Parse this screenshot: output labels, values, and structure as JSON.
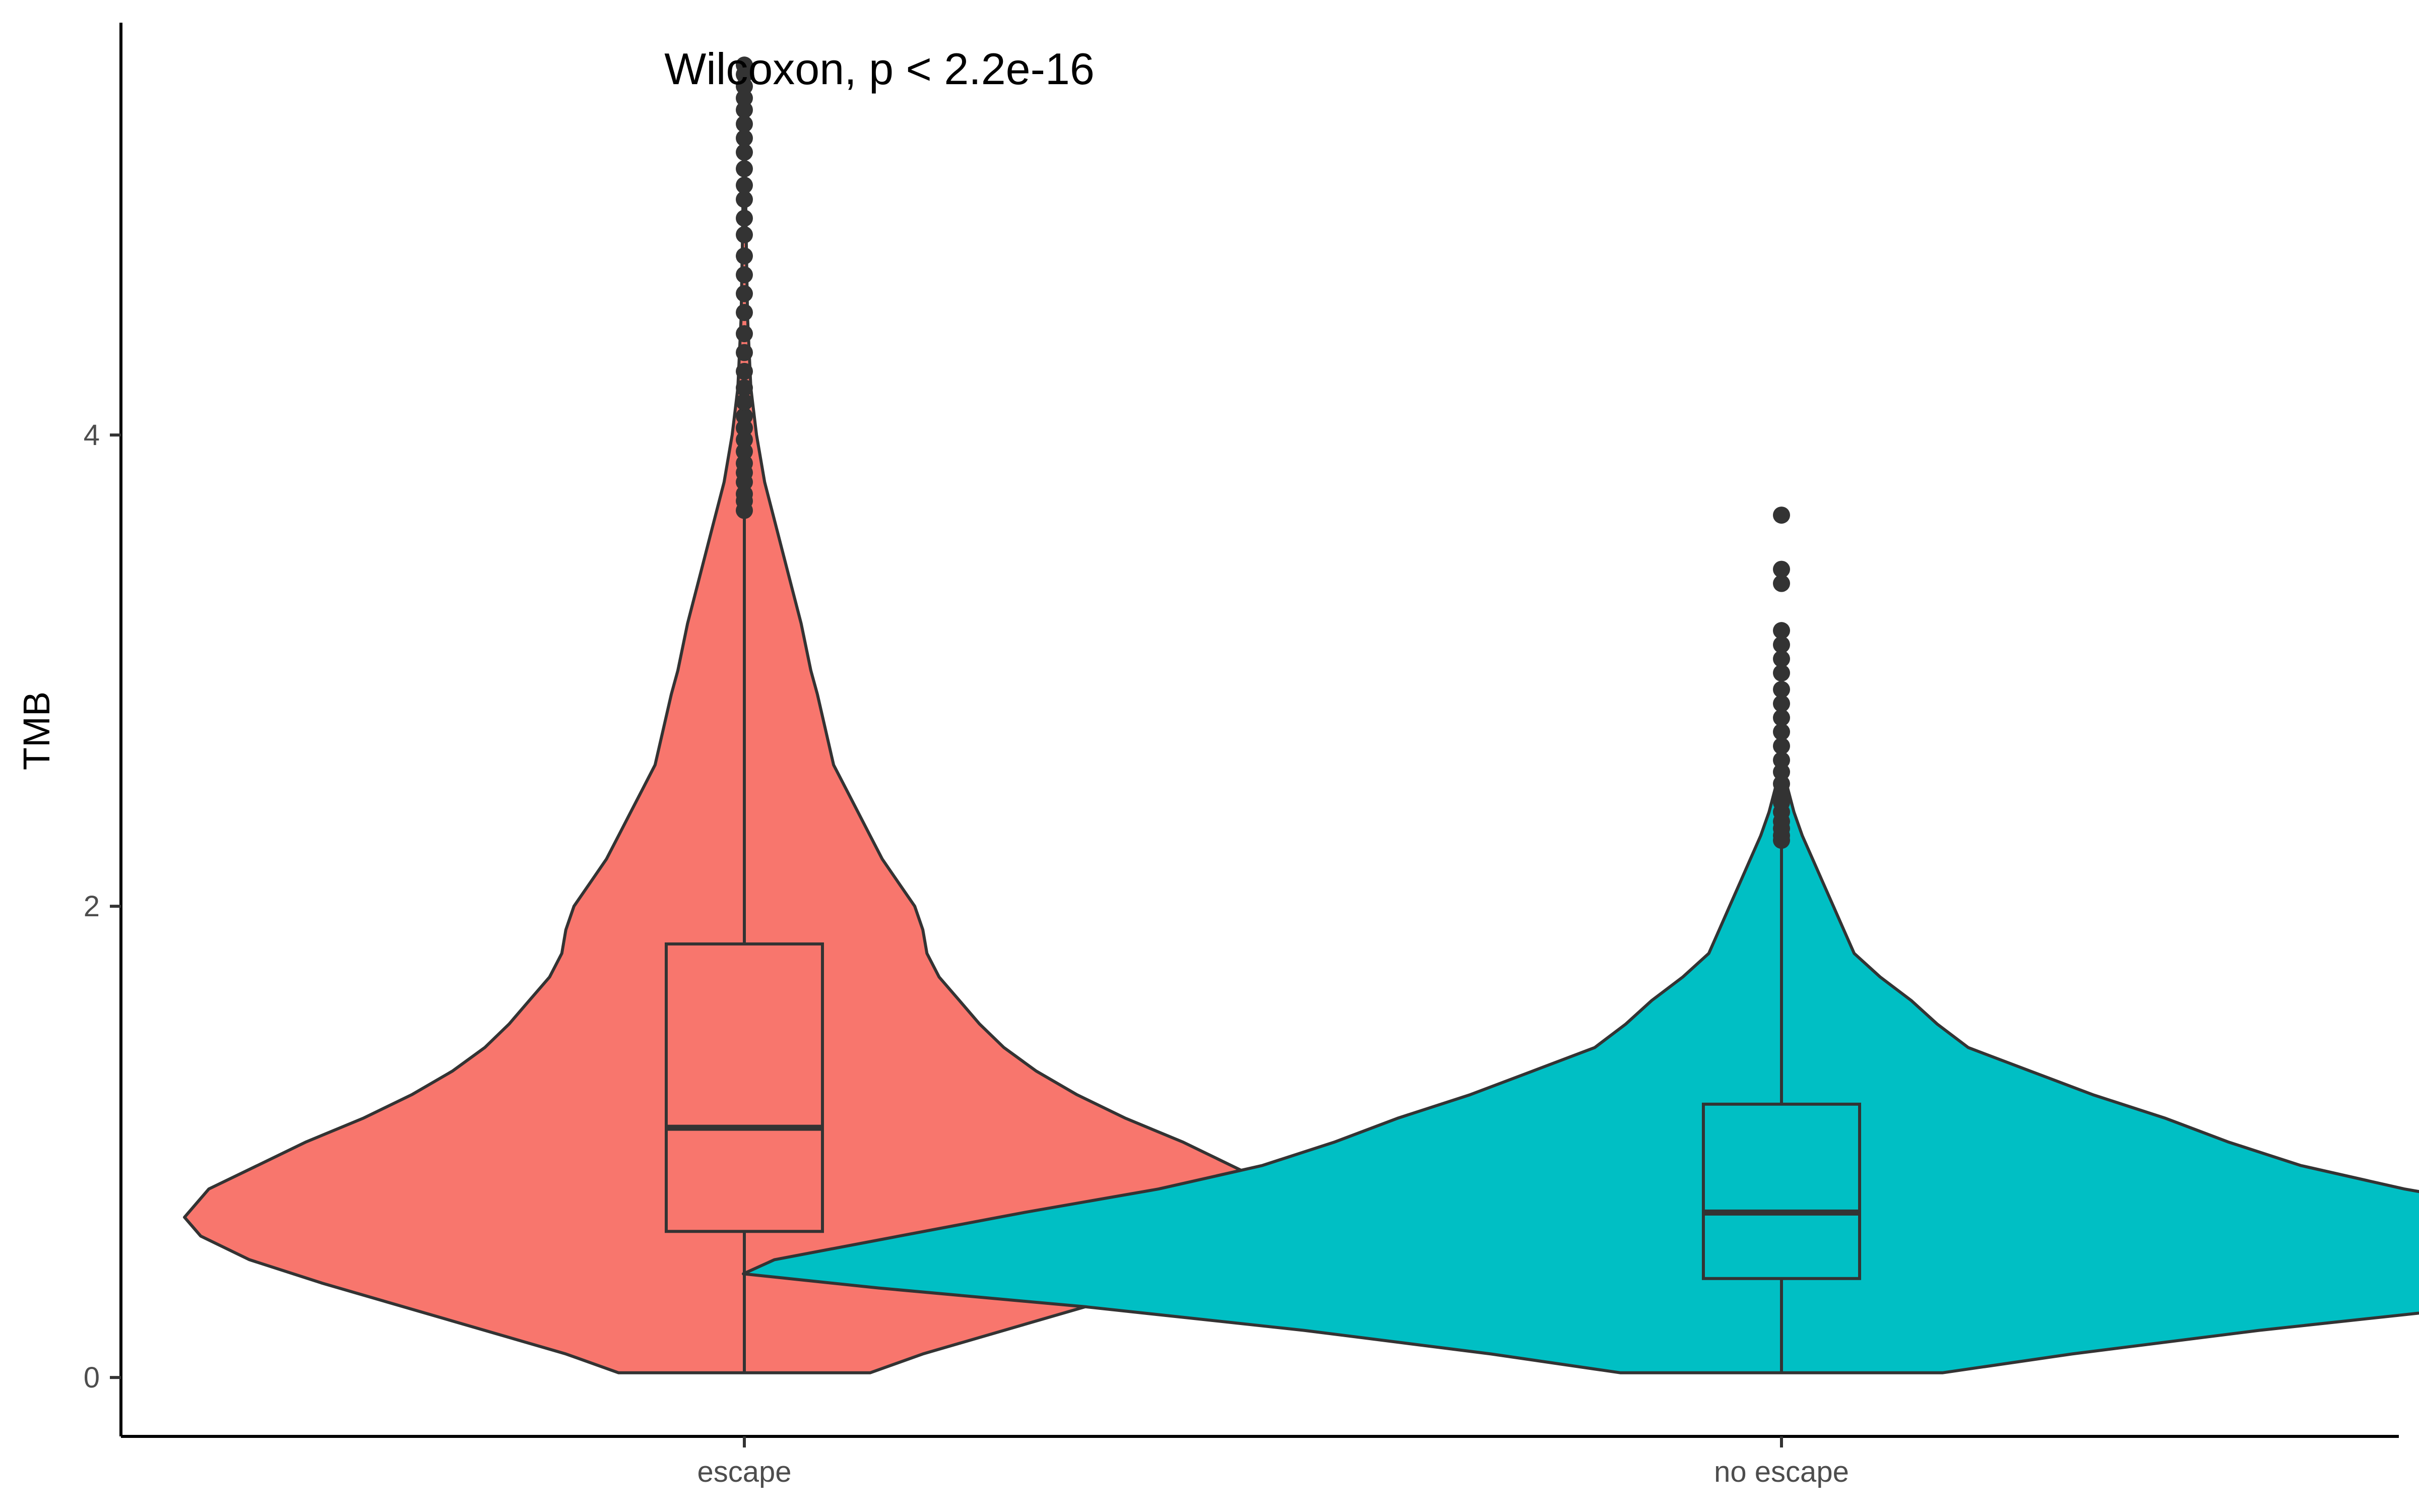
{
  "chart_data": {
    "type": "violin",
    "ylabel": "TMB",
    "yticks": [
      0,
      2,
      4
    ],
    "ylim": [
      -0.25,
      5.75
    ],
    "grid": false,
    "legend": "none",
    "annotation": "Wilcoxon, p < 2.2e-16",
    "stroke_color": "#333333",
    "groups": [
      {
        "name": "escape",
        "color": "#F8766D",
        "box": {
          "q1": 0.62,
          "median": 1.06,
          "q3": 1.84,
          "whisker_low": 0.02,
          "whisker_high": 3.67
        },
        "outliers": [
          3.68,
          3.72,
          3.75,
          3.8,
          3.84,
          3.88,
          3.93,
          3.98,
          4.03,
          4.08,
          4.14,
          4.2,
          4.27,
          4.35,
          4.43,
          4.52,
          4.6,
          4.68,
          4.76,
          4.85,
          4.92,
          5.0,
          5.06,
          5.13,
          5.2,
          5.26,
          5.32,
          5.38,
          5.43,
          5.48,
          5.53,
          5.57
        ],
        "density": [
          [
            0.02,
            0.155
          ],
          [
            0.1,
            0.22
          ],
          [
            0.2,
            0.32
          ],
          [
            0.3,
            0.42
          ],
          [
            0.4,
            0.52
          ],
          [
            0.5,
            0.61
          ],
          [
            0.6,
            0.67
          ],
          [
            0.68,
            0.69
          ],
          [
            0.8,
            0.66
          ],
          [
            0.9,
            0.6
          ],
          [
            1.0,
            0.54
          ],
          [
            1.1,
            0.47
          ],
          [
            1.2,
            0.41
          ],
          [
            1.3,
            0.36
          ],
          [
            1.4,
            0.32
          ],
          [
            1.5,
            0.29
          ],
          [
            1.6,
            0.265
          ],
          [
            1.7,
            0.24
          ],
          [
            1.8,
            0.225
          ],
          [
            1.9,
            0.22
          ],
          [
            2.0,
            0.21
          ],
          [
            2.1,
            0.19
          ],
          [
            2.2,
            0.17
          ],
          [
            2.3,
            0.155
          ],
          [
            2.4,
            0.14
          ],
          [
            2.5,
            0.125
          ],
          [
            2.6,
            0.11
          ],
          [
            2.75,
            0.1
          ],
          [
            2.9,
            0.09
          ],
          [
            3.0,
            0.082
          ],
          [
            3.2,
            0.07
          ],
          [
            3.4,
            0.055
          ],
          [
            3.6,
            0.04
          ],
          [
            3.8,
            0.025
          ],
          [
            4.0,
            0.015
          ],
          [
            4.2,
            0.008
          ],
          [
            4.5,
            0.004
          ],
          [
            4.9,
            0.002
          ],
          [
            5.57,
            0.0
          ]
        ]
      },
      {
        "name": "no escape",
        "color": "#00BFC4",
        "box": {
          "q1": 0.42,
          "median": 0.7,
          "q3": 1.16,
          "whisker_low": 0.02,
          "whisker_high": 2.27
        },
        "outliers": [
          2.28,
          2.3,
          2.33,
          2.36,
          2.4,
          2.44,
          2.48,
          2.52,
          2.57,
          2.62,
          2.68,
          2.74,
          2.8,
          2.86,
          2.92,
          2.99,
          3.05,
          3.11,
          3.17,
          3.37,
          3.43,
          3.66
        ],
        "density": [
          [
            0.02,
            0.155
          ],
          [
            0.1,
            0.28
          ],
          [
            0.2,
            0.46
          ],
          [
            0.3,
            0.67
          ],
          [
            0.38,
            0.87
          ],
          [
            0.44,
            1.0
          ],
          [
            0.5,
            0.97
          ],
          [
            0.6,
            0.85
          ],
          [
            0.7,
            0.73
          ],
          [
            0.8,
            0.6
          ],
          [
            0.9,
            0.5
          ],
          [
            1.0,
            0.43
          ],
          [
            1.1,
            0.37
          ],
          [
            1.2,
            0.3
          ],
          [
            1.3,
            0.24
          ],
          [
            1.4,
            0.18
          ],
          [
            1.5,
            0.15
          ],
          [
            1.6,
            0.125
          ],
          [
            1.7,
            0.095
          ],
          [
            1.8,
            0.07
          ],
          [
            1.9,
            0.06
          ],
          [
            2.0,
            0.05
          ],
          [
            2.1,
            0.04
          ],
          [
            2.2,
            0.03
          ],
          [
            2.3,
            0.02
          ],
          [
            2.4,
            0.012
          ],
          [
            2.5,
            0.006
          ],
          [
            2.6,
            0.002
          ],
          [
            2.7,
            0.0
          ]
        ]
      }
    ]
  }
}
